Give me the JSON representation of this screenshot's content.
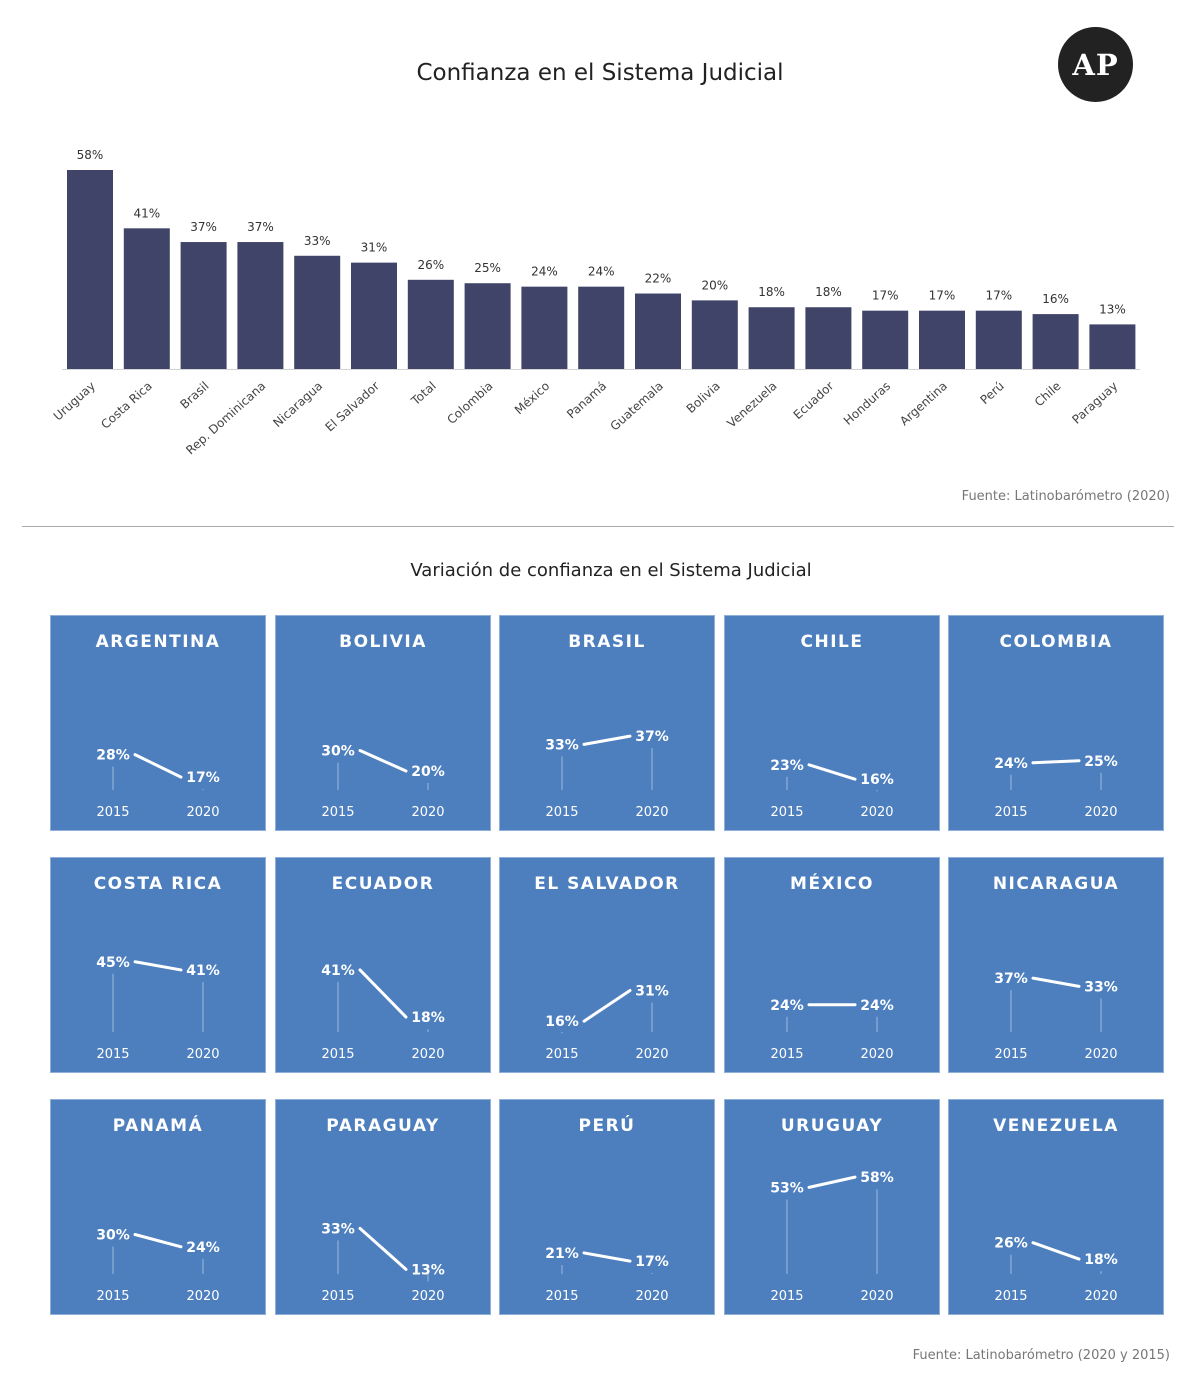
{
  "logo": {
    "text": "AP"
  },
  "bar_section": {
    "title": "Confianza en el Sistema Judicial",
    "source": "Fuente: Latinobarómetro (2020)"
  },
  "small_multiples": {
    "title": "Variación de confianza en el Sistema Judicial",
    "source": "Fuente: Latinobarómetro (2020 y 2015)"
  },
  "colors": {
    "bar": "#3f4468",
    "panel_bg": "#4d7fbe",
    "panel_border": "#8fb0d9",
    "panel_line": "#ffffff"
  },
  "chart_data": [
    {
      "type": "bar",
      "title": "Confianza en el Sistema Judicial",
      "categories": [
        "Uruguay",
        "Costa Rica",
        "Brasil",
        "Rep. Dominicana",
        "Nicaragua",
        "El Salvador",
        "Total",
        "Colombia",
        "México",
        "Panamá",
        "Guatemala",
        "Bolivia",
        "Venezuela",
        "Ecuador",
        "Honduras",
        "Argentina",
        "Perú",
        "Chile",
        "Paraguay"
      ],
      "values": [
        58,
        41,
        37,
        37,
        33,
        31,
        26,
        25,
        24,
        24,
        22,
        20,
        18,
        18,
        17,
        17,
        17,
        16,
        13
      ],
      "value_labels": [
        "58%",
        "41%",
        "37%",
        "37%",
        "33%",
        "31%",
        "26%",
        "25%",
        "24%",
        "24%",
        "22%",
        "20%",
        "18%",
        "18%",
        "17%",
        "17%",
        "17%",
        "16%",
        "13%"
      ],
      "ylim": [
        0,
        60
      ],
      "grid": false,
      "legend": "none"
    },
    {
      "type": "line",
      "title": "Variación de confianza en el Sistema Judicial",
      "x": [
        "2015",
        "2020"
      ],
      "ylim": [
        0,
        60
      ],
      "panels": [
        {
          "country": "ARGENTINA",
          "values": [
            28,
            17
          ],
          "labels": [
            "28%",
            "17%"
          ]
        },
        {
          "country": "BOLIVIA",
          "values": [
            30,
            20
          ],
          "labels": [
            "30%",
            "20%"
          ]
        },
        {
          "country": "BRASIL",
          "values": [
            33,
            37
          ],
          "labels": [
            "33%",
            "37%"
          ]
        },
        {
          "country": "CHILE",
          "values": [
            23,
            16
          ],
          "labels": [
            "23%",
            "16%"
          ]
        },
        {
          "country": "COLOMBIA",
          "values": [
            24,
            25
          ],
          "labels": [
            "24%",
            "25%"
          ]
        },
        {
          "country": "COSTA RICA",
          "values": [
            45,
            41
          ],
          "labels": [
            "45%",
            "41%"
          ]
        },
        {
          "country": "ECUADOR",
          "values": [
            41,
            18
          ],
          "labels": [
            "41%",
            "18%"
          ]
        },
        {
          "country": "EL SALVADOR",
          "values": [
            16,
            31
          ],
          "labels": [
            "16%",
            "31%"
          ]
        },
        {
          "country": "MÉXICO",
          "values": [
            24,
            24
          ],
          "labels": [
            "24%",
            "24%"
          ]
        },
        {
          "country": "NICARAGUA",
          "values": [
            37,
            33
          ],
          "labels": [
            "37%",
            "33%"
          ]
        },
        {
          "country": "PANAMÁ",
          "values": [
            30,
            24
          ],
          "labels": [
            "30%",
            "24%"
          ]
        },
        {
          "country": "PARAGUAY",
          "values": [
            33,
            13
          ],
          "labels": [
            "33%",
            "13%"
          ]
        },
        {
          "country": "PERÚ",
          "values": [
            21,
            17
          ],
          "labels": [
            "21%",
            "17%"
          ]
        },
        {
          "country": "URUGUAY",
          "values": [
            53,
            58
          ],
          "labels": [
            "53%",
            "58%"
          ]
        },
        {
          "country": "VENEZUELA",
          "values": [
            26,
            18
          ],
          "labels": [
            "26%",
            "18%"
          ]
        }
      ]
    }
  ]
}
